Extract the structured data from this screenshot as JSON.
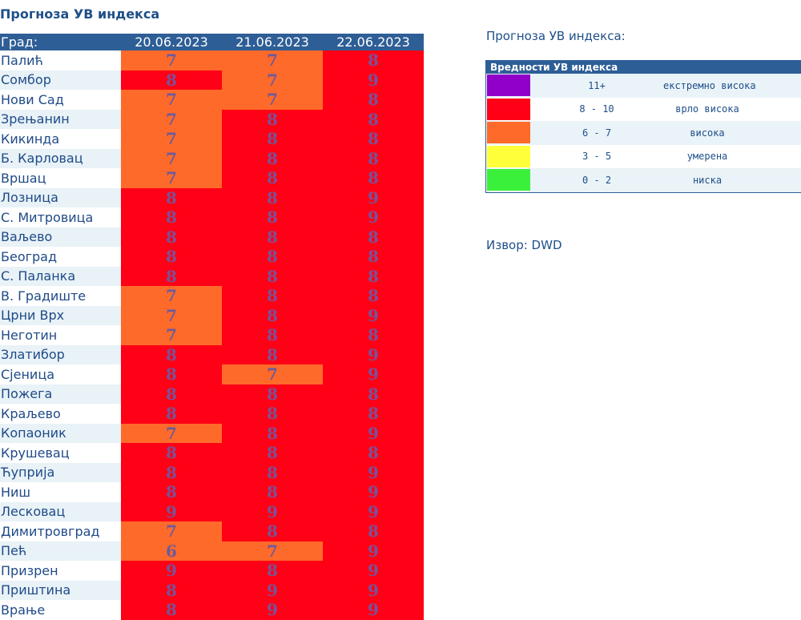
{
  "page": {
    "title": "Прогноза УВ индекса"
  },
  "table": {
    "city_header": "Град:",
    "dates": [
      "20.06.2023",
      "21.06.2023",
      "22.06.2023"
    ],
    "rows": [
      {
        "city": "Палић",
        "uv": [
          "7",
          "7",
          "8"
        ]
      },
      {
        "city": "Сомбор",
        "uv": [
          "8",
          "7",
          "9"
        ]
      },
      {
        "city": "Нови Сад",
        "uv": [
          "7",
          "7",
          "8"
        ]
      },
      {
        "city": "Зрењанин",
        "uv": [
          "7",
          "8",
          "8"
        ]
      },
      {
        "city": "Кикинда",
        "uv": [
          "7",
          "8",
          "8"
        ]
      },
      {
        "city": "Б. Карловац",
        "uv": [
          "7",
          "8",
          "8"
        ]
      },
      {
        "city": "Вршац",
        "uv": [
          "7",
          "8",
          "8"
        ]
      },
      {
        "city": "Лозница",
        "uv": [
          "8",
          "8",
          "9"
        ]
      },
      {
        "city": "С. Митровица",
        "uv": [
          "8",
          "8",
          "9"
        ]
      },
      {
        "city": "Ваљево",
        "uv": [
          "8",
          "8",
          "8"
        ]
      },
      {
        "city": "Београд",
        "uv": [
          "8",
          "8",
          "8"
        ]
      },
      {
        "city": "С. Паланка",
        "uv": [
          "8",
          "8",
          "8"
        ]
      },
      {
        "city": "В. Градиште",
        "uv": [
          "7",
          "8",
          "8"
        ]
      },
      {
        "city": "Црни Врх",
        "uv": [
          "7",
          "8",
          "9"
        ]
      },
      {
        "city": "Неготин",
        "uv": [
          "7",
          "8",
          "8"
        ]
      },
      {
        "city": "Златибор",
        "uv": [
          "8",
          "8",
          "9"
        ]
      },
      {
        "city": "Сјеница",
        "uv": [
          "8",
          "7",
          "9"
        ]
      },
      {
        "city": "Пожега",
        "uv": [
          "8",
          "8",
          "8"
        ]
      },
      {
        "city": "Краљево",
        "uv": [
          "8",
          "8",
          "8"
        ]
      },
      {
        "city": "Копаоник",
        "uv": [
          "7",
          "8",
          "9"
        ]
      },
      {
        "city": "Крушевац",
        "uv": [
          "8",
          "8",
          "8"
        ]
      },
      {
        "city": "Ћуприја",
        "uv": [
          "8",
          "8",
          "9"
        ]
      },
      {
        "city": "Ниш",
        "uv": [
          "8",
          "8",
          "9"
        ]
      },
      {
        "city": "Лесковац",
        "uv": [
          "9",
          "9",
          "9"
        ]
      },
      {
        "city": "Димитровград",
        "uv": [
          "7",
          "8",
          "8"
        ]
      },
      {
        "city": "Пећ",
        "uv": [
          "6",
          "7",
          "9"
        ]
      },
      {
        "city": "Призрен",
        "uv": [
          "9",
          "8",
          "9"
        ]
      },
      {
        "city": "Приштина",
        "uv": [
          "8",
          "9",
          "9"
        ]
      },
      {
        "city": "Врање",
        "uv": [
          "8",
          "9",
          "9"
        ]
      }
    ]
  },
  "colors": {
    "purple": "#9000c8",
    "red": "#ff0016",
    "orange": "#fe6a2a",
    "yellow": "#ffff3a",
    "green": "#3bf03a"
  },
  "right_panel": {
    "title": "Прогноза УВ индекса:",
    "legend_title": "Вредности УВ индекса",
    "legend": [
      {
        "color": "#9000c8",
        "range": "11+",
        "label": "екстремно висока"
      },
      {
        "color": "#ff0016",
        "range": "8 - 10",
        "label": "врло висока"
      },
      {
        "color": "#fe6a2a",
        "range": "6 - 7",
        "label": "висока"
      },
      {
        "color": "#ffff3a",
        "range": "3 - 5",
        "label": "умерена"
      },
      {
        "color": "#3bf03a",
        "range": "0 - 2",
        "label": "ниска"
      }
    ],
    "source": "Извор: DWD"
  }
}
